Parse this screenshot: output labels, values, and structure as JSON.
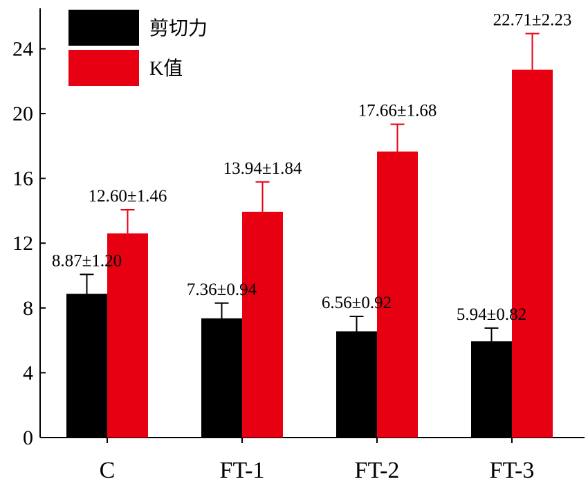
{
  "chart_data": {
    "type": "bar",
    "categories": [
      "C",
      "FT-1",
      "FT-2",
      "FT-3"
    ],
    "series": [
      {
        "name": "剪切力",
        "color": "#000000",
        "values": [
          8.87,
          7.36,
          6.56,
          5.94
        ],
        "errors": [
          1.2,
          0.94,
          0.92,
          0.82
        ],
        "labels": [
          "8.87±1.20",
          "7.36±0.94",
          "6.56±0.92",
          "5.94±0.82"
        ]
      },
      {
        "name": "K值",
        "color": "#e60012",
        "values": [
          12.6,
          13.94,
          17.66,
          22.71
        ],
        "errors": [
          1.46,
          1.84,
          1.68,
          2.23
        ],
        "labels": [
          "12.60±1.46",
          "13.94±1.84",
          "17.66±1.68",
          "22.71±2.23"
        ]
      }
    ],
    "ylim": [
      0,
      26.5
    ],
    "yticks": [
      0,
      4,
      8,
      12,
      16,
      20,
      24
    ],
    "title": "",
    "xlabel": "",
    "ylabel": "",
    "legend_position": "top-left",
    "grid": false
  }
}
